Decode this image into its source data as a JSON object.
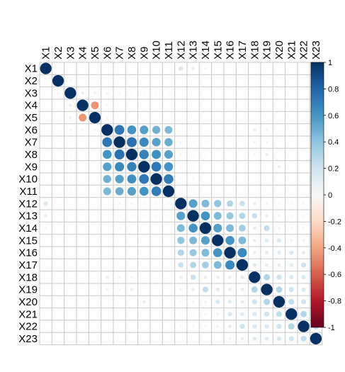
{
  "chart_data": {
    "type": "heatmap",
    "variables": [
      "X1",
      "X2",
      "X3",
      "X4",
      "X5",
      "X6",
      "X7",
      "X8",
      "X9",
      "X10",
      "X11",
      "X12",
      "X13",
      "X14",
      "X15",
      "X16",
      "X17",
      "X18",
      "X19",
      "X20",
      "X21",
      "X22",
      "X23"
    ],
    "colorbar": {
      "range": [
        -1,
        1
      ],
      "ticks": [
        "1",
        "0.8",
        "0.6",
        "0.4",
        "0.2",
        "0",
        "-0.2",
        "-0.4",
        "-0.6",
        "-0.8",
        "-1"
      ],
      "tick_values": [
        1,
        0.8,
        0.6,
        0.4,
        0.2,
        0,
        -0.2,
        -0.4,
        -0.6,
        -0.8,
        -1
      ],
      "color_negative": "#67001f",
      "color_mid": "#f7f7f7",
      "color_positive": "#053061"
    },
    "matrix": [
      [
        1,
        0.02,
        0,
        0,
        0,
        0,
        0,
        0,
        0,
        0,
        0,
        0.15,
        0.08,
        0.03,
        0,
        0,
        0,
        0,
        0,
        0,
        0,
        0,
        0
      ],
      [
        0.02,
        1,
        0.03,
        0,
        0.02,
        0,
        0,
        0,
        0,
        0,
        0,
        0,
        0,
        0,
        0,
        0,
        0,
        0,
        0,
        0,
        0,
        0,
        0
      ],
      [
        0,
        0.03,
        1,
        -0.08,
        0.05,
        0.05,
        0.02,
        0.02,
        0.02,
        0.02,
        0.02,
        0,
        0,
        0,
        0,
        0,
        0,
        0,
        0,
        0,
        0,
        0,
        0
      ],
      [
        0,
        0,
        -0.08,
        1,
        -0.45,
        0.03,
        0,
        0,
        0,
        0,
        0,
        0,
        0,
        0,
        0,
        0,
        0,
        0,
        0,
        0,
        0,
        0,
        0
      ],
      [
        0,
        0.02,
        0.05,
        -0.45,
        1,
        0.04,
        0,
        0,
        0,
        0,
        0,
        0,
        0,
        0,
        0,
        0,
        0,
        0,
        0,
        0,
        0,
        0,
        0
      ],
      [
        0,
        0,
        0.05,
        0.03,
        0.04,
        1,
        0.72,
        0.6,
        0.55,
        0.48,
        0.45,
        0,
        0,
        0,
        0,
        0,
        0,
        -0.08,
        0.05,
        0,
        0,
        0,
        0
      ],
      [
        0,
        0,
        0.02,
        0,
        0,
        0.72,
        1,
        0.75,
        0.65,
        0.55,
        0.5,
        0.03,
        0.02,
        0.02,
        0,
        0,
        0,
        0.05,
        0.04,
        0,
        0,
        0,
        0
      ],
      [
        0,
        0,
        0.02,
        0,
        0,
        0.6,
        0.75,
        1,
        0.68,
        0.62,
        0.55,
        0.03,
        0.02,
        0.02,
        0,
        0,
        0,
        0.04,
        -0.08,
        0,
        0,
        0,
        0
      ],
      [
        0,
        0,
        0.02,
        0,
        0,
        0.55,
        0.65,
        0.68,
        1,
        0.72,
        0.6,
        0.02,
        0.02,
        0,
        0,
        0,
        0,
        0,
        0,
        -0.08,
        0,
        0,
        0
      ],
      [
        0,
        0,
        0.02,
        0,
        0,
        0.48,
        0.55,
        0.62,
        0.72,
        1,
        0.7,
        0.02,
        0.02,
        0,
        0,
        0,
        0,
        0,
        0,
        0,
        0,
        0,
        0
      ],
      [
        0,
        0,
        0.02,
        0,
        0,
        0.45,
        0.5,
        0.55,
        0.6,
        0.7,
        1,
        0.02,
        0.02,
        0,
        0,
        0,
        0,
        0,
        0,
        0,
        0,
        0,
        0
      ],
      [
        0.15,
        0,
        0,
        0,
        0,
        0,
        0.03,
        0.03,
        0.02,
        0.02,
        0.02,
        1,
        0.55,
        0.45,
        0.4,
        0.3,
        0.22,
        0.08,
        0.05,
        0.02,
        0.02,
        0.02,
        0
      ],
      [
        0.08,
        0,
        0,
        0,
        0,
        0,
        0.02,
        0.02,
        0.02,
        0.02,
        0.02,
        0.55,
        1,
        0.6,
        0.45,
        0.38,
        0.3,
        0.22,
        0.08,
        0.05,
        0.02,
        0.02,
        0
      ],
      [
        0.03,
        0,
        0,
        0,
        0,
        0,
        0.02,
        0.02,
        0,
        0,
        0,
        0.45,
        0.6,
        1,
        0.55,
        0.45,
        0.35,
        0.1,
        0.25,
        0.05,
        0.03,
        0.03,
        0
      ],
      [
        0,
        0,
        0,
        0,
        0,
        0,
        0,
        0,
        0,
        0,
        0,
        0.4,
        0.45,
        0.55,
        1,
        0.6,
        0.45,
        0.08,
        0.12,
        0.15,
        0.05,
        0.05,
        0
      ],
      [
        0,
        0,
        0,
        0,
        0,
        0,
        0,
        0,
        0,
        0,
        0,
        0.3,
        0.38,
        0.45,
        0.6,
        1,
        0.65,
        0.08,
        0.1,
        0.12,
        0.15,
        0.1,
        0.05
      ],
      [
        0,
        0,
        0,
        0,
        0,
        0,
        0,
        0,
        0,
        0,
        0,
        0.22,
        0.3,
        0.35,
        0.45,
        0.65,
        1,
        0.12,
        0.1,
        0.1,
        0.12,
        0.2,
        0.08
      ],
      [
        0,
        0,
        0,
        0,
        0,
        -0.08,
        0.05,
        0.04,
        0,
        0,
        0,
        0.08,
        0.22,
        0.1,
        0.08,
        0.08,
        0.12,
        1,
        0.3,
        0.2,
        0.15,
        0.15,
        0.12
      ],
      [
        0,
        0,
        0,
        0,
        0,
        0.05,
        0.04,
        -0.08,
        0,
        0,
        0,
        0.05,
        0.08,
        0.25,
        0.12,
        0.1,
        0.1,
        0.3,
        1,
        0.3,
        0.2,
        0.15,
        0.12
      ],
      [
        0,
        0,
        0,
        0,
        0,
        0,
        0,
        0,
        -0.08,
        0,
        0,
        0.02,
        0.05,
        0.05,
        0.15,
        0.12,
        0.1,
        0.2,
        0.3,
        1,
        0.25,
        0.2,
        0.15
      ],
      [
        0,
        0,
        0,
        0,
        0,
        0,
        0,
        0,
        0,
        0,
        0,
        0.02,
        0.02,
        0.03,
        0.05,
        0.15,
        0.12,
        0.15,
        0.2,
        0.25,
        1,
        0.3,
        0.2
      ],
      [
        0,
        0,
        0,
        0,
        0,
        0,
        0,
        0,
        0,
        0,
        0,
        0.02,
        0.02,
        0.03,
        0.05,
        0.1,
        0.2,
        0.15,
        0.15,
        0.2,
        0.3,
        1,
        0.25
      ],
      [
        0,
        0,
        0,
        0,
        0,
        0,
        0,
        0,
        0,
        0,
        0,
        0,
        0,
        0,
        0,
        0.05,
        0.08,
        0.12,
        0.12,
        0.15,
        0.2,
        0.25,
        1
      ]
    ]
  }
}
